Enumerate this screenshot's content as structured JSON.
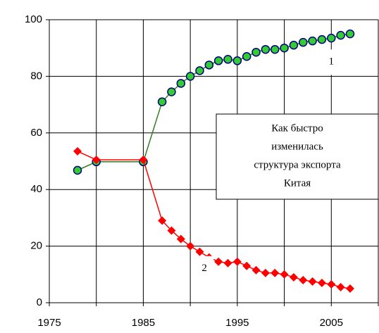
{
  "chart_data": {
    "type": "line",
    "x": [
      1978,
      1980,
      1985,
      1987,
      1988,
      1989,
      1990,
      1991,
      1992,
      1993,
      1994,
      1995,
      1996,
      1997,
      1998,
      1999,
      2000,
      2001,
      2002,
      2003,
      2004,
      2005,
      2006,
      2007
    ],
    "series": [
      {
        "name": "1",
        "color": "#2e7d1e",
        "marker_color": "#33cc33",
        "marker": "circle",
        "values": [
          46.8,
          49.8,
          49.8,
          71,
          74.5,
          77.5,
          80,
          82,
          84,
          85.5,
          86,
          85.5,
          87,
          88.5,
          89.5,
          89.5,
          90,
          91,
          92,
          92.5,
          93,
          93.5,
          94.5,
          95
        ]
      },
      {
        "name": "2",
        "color": "#ff0000",
        "marker_color": "#ff0000",
        "marker": "diamond",
        "values": [
          53.5,
          50.5,
          50.5,
          29,
          25.5,
          22.5,
          20,
          18,
          16,
          14.5,
          14,
          14.5,
          13,
          11.5,
          10.5,
          10.5,
          10,
          9,
          8,
          7.5,
          7,
          6.5,
          5.5,
          5
        ]
      }
    ],
    "xlim": [
      1975,
      2010
    ],
    "xticks": [
      1975,
      1985,
      1995,
      2005
    ],
    "xminor": [
      1980,
      1990,
      2000,
      2010
    ],
    "ylim": [
      0,
      100
    ],
    "yticks": [
      0,
      20,
      40,
      60,
      80,
      100
    ],
    "grid": true,
    "annotations": [
      {
        "text": "1",
        "x": 2005,
        "y": 85
      },
      {
        "text": "2",
        "x": 1991.5,
        "y": 12
      }
    ],
    "textbox": [
      "Как быстро",
      "изменилась",
      "структура экспорта",
      "Китая"
    ]
  }
}
